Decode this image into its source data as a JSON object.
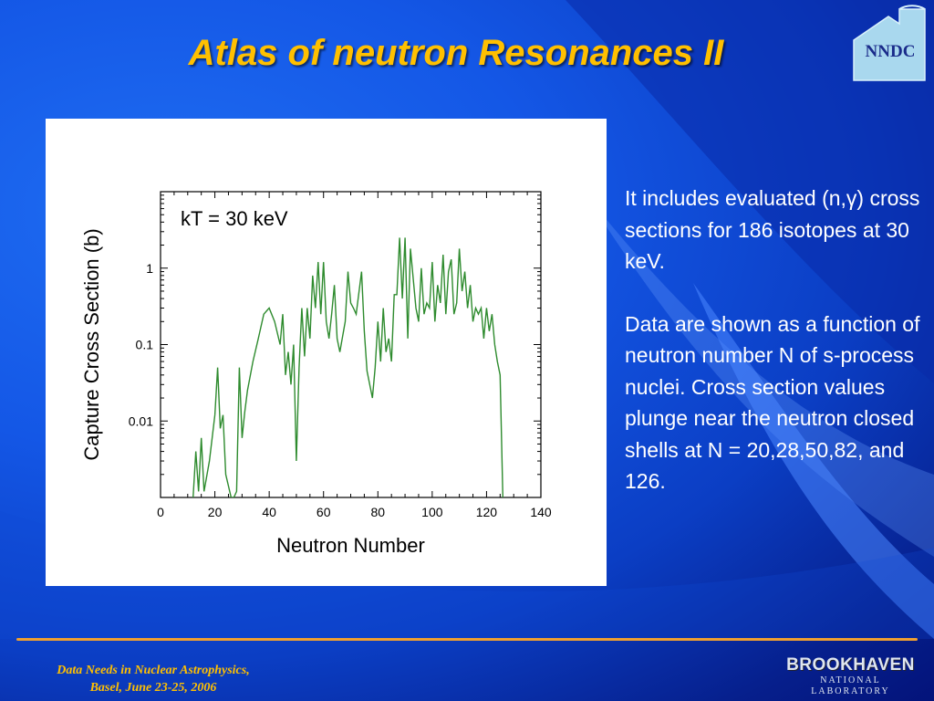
{
  "slide": {
    "title": "Atlas of neutron Resonances II",
    "logo_text": "NNDC",
    "description": [
      "It includes evaluated (n,γ) cross sections for 186 isotopes at 30 keV.",
      "Data are shown as a function of neutron number N of s-process nuclei. Cross section values plunge near the neutron closed shells at N = 20,28,50,82, and 126."
    ],
    "footer": {
      "line1": "Data Needs in Nuclear Astrophysics,",
      "line2": "Basel, June 23-25,  2006"
    },
    "lab_logo": {
      "name": "BROOKHAVEN",
      "sub": "NATIONAL LABORATORY"
    }
  },
  "colors": {
    "title": "#ffc000",
    "line": "#2e8b2e",
    "divider": "#f0a030",
    "text": "#ffffff"
  },
  "chart_data": {
    "type": "line",
    "annotation": "kT = 30 keV",
    "xlabel": "Neutron Number",
    "ylabel": "Capture Cross Section (b)",
    "xlim": [
      0,
      140
    ],
    "ylim": [
      0.001,
      10
    ],
    "yscale": "log",
    "xticks": [
      0,
      20,
      40,
      60,
      80,
      100,
      120,
      140
    ],
    "yticks": [
      {
        "value": 0.01,
        "label": "0.01"
      },
      {
        "value": 0.1,
        "label": "0.1"
      },
      {
        "value": 1,
        "label": "1"
      }
    ],
    "grid": false,
    "series": [
      {
        "x": [
          12,
          13,
          14,
          15,
          16,
          18,
          20,
          21,
          22,
          23,
          24,
          26,
          27,
          28,
          29,
          30,
          31,
          32,
          34,
          36,
          38,
          40,
          42,
          44,
          45,
          46,
          47,
          48,
          49,
          50,
          51,
          52,
          53,
          54,
          55,
          56,
          57,
          58,
          59,
          60,
          61,
          62,
          63,
          64,
          65,
          66,
          68,
          69,
          70,
          71,
          72,
          74,
          75,
          76,
          78,
          79,
          80,
          81,
          82,
          83,
          84,
          85,
          86,
          87,
          88,
          89,
          90,
          91,
          92,
          94,
          95,
          96,
          97,
          98,
          99,
          100,
          101,
          102,
          103,
          104,
          105,
          106,
          107,
          108,
          109,
          110,
          111,
          112,
          113,
          114,
          115,
          116,
          117,
          118,
          119,
          120,
          121,
          122,
          123,
          124,
          125,
          126
        ],
        "y": [
          0.001,
          0.004,
          0.0012,
          0.006,
          0.0012,
          0.003,
          0.012,
          0.05,
          0.008,
          0.012,
          0.002,
          0.001,
          0.0008,
          0.0012,
          0.05,
          0.006,
          0.013,
          0.025,
          0.06,
          0.12,
          0.25,
          0.3,
          0.2,
          0.1,
          0.25,
          0.04,
          0.08,
          0.03,
          0.1,
          0.003,
          0.05,
          0.3,
          0.07,
          0.3,
          0.12,
          0.8,
          0.3,
          1.2,
          0.25,
          1.2,
          0.2,
          0.12,
          0.25,
          0.6,
          0.12,
          0.08,
          0.2,
          0.9,
          0.35,
          0.3,
          0.25,
          0.9,
          0.15,
          0.045,
          0.02,
          0.05,
          0.2,
          0.06,
          0.3,
          0.08,
          0.12,
          0.06,
          0.45,
          0.45,
          2.5,
          0.4,
          2.5,
          0.12,
          1.8,
          0.3,
          0.2,
          1,
          0.25,
          0.35,
          0.3,
          1.2,
          0.2,
          0.6,
          0.35,
          1.5,
          0.25,
          0.9,
          1.3,
          0.25,
          0.35,
          1.8,
          0.5,
          0.9,
          0.3,
          0.6,
          0.2,
          0.3,
          0.25,
          0.3,
          0.12,
          0.3,
          0.15,
          0.25,
          0.1,
          0.06,
          0.04,
          0.0008
        ]
      }
    ]
  }
}
